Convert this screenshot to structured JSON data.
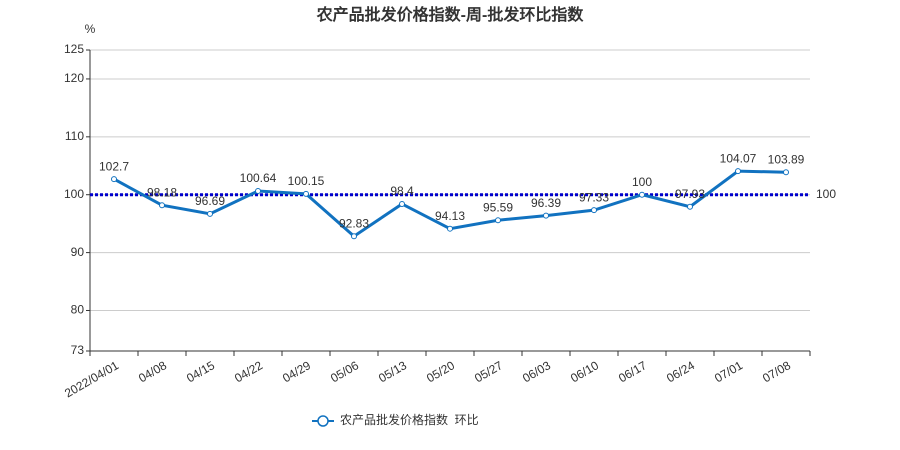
{
  "chart_data": {
    "type": "line",
    "title": "农产品批发价格指数-周-批发环比指数",
    "y_label": "%",
    "categories": [
      "2022/04/01",
      "04/08",
      "04/15",
      "04/22",
      "04/29",
      "05/06",
      "05/13",
      "05/20",
      "05/27",
      "06/03",
      "06/10",
      "06/17",
      "06/24",
      "07/01",
      "07/08"
    ],
    "series": [
      {
        "name": "农产品批发价格指数  环比",
        "color": "#1172c0",
        "values": [
          102.7,
          98.18,
          96.69,
          100.64,
          100.15,
          92.83,
          98.4,
          94.13,
          95.59,
          96.39,
          97.33,
          100,
          97.93,
          104.07,
          103.89
        ]
      }
    ],
    "ylim": [
      73,
      125
    ],
    "yticks": [
      73,
      80,
      90,
      100,
      110,
      120,
      125
    ],
    "grid": true,
    "reference_line": 100,
    "reference_color": "#0000cc",
    "legend": "bottom"
  }
}
